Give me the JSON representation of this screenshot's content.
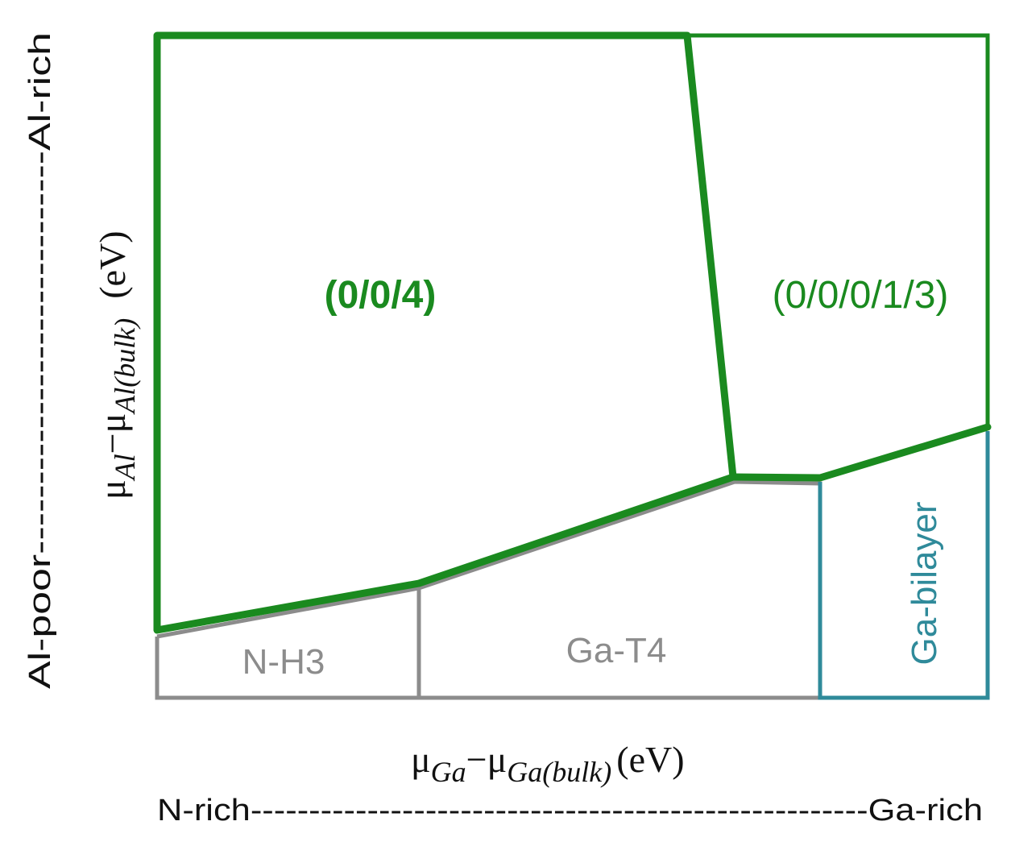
{
  "colors": {
    "green": "#1a8a1f",
    "gray": "#8c8c8c",
    "teal": "#2f8a9a",
    "black": "#111111"
  },
  "regions": {
    "r004": {
      "label": "(0/0/4)"
    },
    "r00013": {
      "label": "(0/0/0/1/3)"
    },
    "nh3": {
      "label": "N-H3"
    },
    "gat4": {
      "label": "Ga-T4"
    },
    "gabilayer": {
      "label": "Ga-bilayer"
    }
  },
  "axes": {
    "x": {
      "mu": "μ",
      "sub1": "Ga",
      "minus": "−μ",
      "sub2": "Ga(bulk)",
      "unit": "(eV)",
      "left_end": "N-rich",
      "dashes": "-----------------------------------------------------",
      "right_end": "Ga-rich"
    },
    "y": {
      "mu": "μ",
      "sub1": "Al",
      "minus": "−μ",
      "sub2": "Al(bulk)",
      "unit": "(eV)",
      "bottom_end": "Al-poor",
      "dashes": "-----------------------------",
      "top_end": "Al-rich"
    }
  }
}
